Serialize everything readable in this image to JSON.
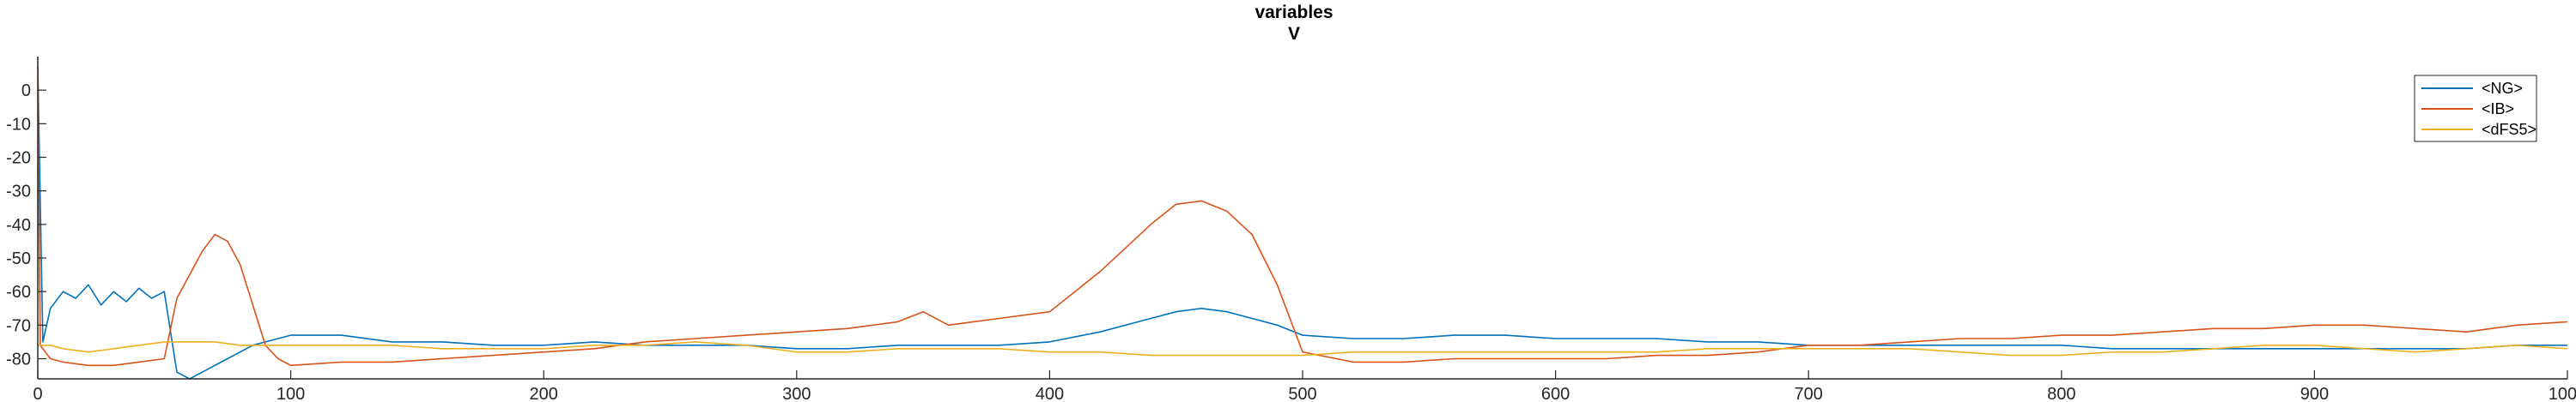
{
  "chart_data": {
    "type": "line",
    "title": "variables",
    "subtitle": "V",
    "xlim": [
      0,
      1000
    ],
    "ylim": [
      -86,
      10
    ],
    "x_ticks": [
      0,
      100,
      200,
      300,
      400,
      500,
      600,
      700,
      800,
      900,
      1000
    ],
    "y_ticks": [
      0,
      -10,
      -20,
      -30,
      -40,
      -50,
      -60,
      -70,
      -80
    ],
    "grid": false,
    "legend_position": "top-right",
    "series": [
      {
        "name": "<NG>",
        "color": "#0072BD",
        "x": [
          0,
          2,
          5,
          10,
          15,
          20,
          25,
          30,
          35,
          40,
          45,
          50,
          55,
          60,
          65,
          70,
          75,
          80,
          85,
          90,
          95,
          100,
          120,
          140,
          160,
          180,
          200,
          220,
          240,
          260,
          280,
          300,
          320,
          340,
          360,
          380,
          400,
          420,
          440,
          450,
          460,
          470,
          480,
          490,
          500,
          520,
          540,
          560,
          580,
          600,
          620,
          640,
          660,
          680,
          700,
          720,
          740,
          760,
          780,
          800,
          820,
          840,
          860,
          880,
          900,
          920,
          940,
          960,
          980,
          1000
        ],
        "y": [
          7,
          -75,
          -65,
          -60,
          -62,
          -58,
          -64,
          -60,
          -63,
          -59,
          -62,
          -60,
          -84,
          -86,
          -84,
          -82,
          -80,
          -78,
          -76,
          -75,
          -74,
          -73,
          -73,
          -75,
          -75,
          -76,
          -76,
          -75,
          -76,
          -76,
          -76,
          -77,
          -77,
          -76,
          -76,
          -76,
          -75,
          -72,
          -68,
          -66,
          -65,
          -66,
          -68,
          -70,
          -73,
          -74,
          -74,
          -73,
          -73,
          -74,
          -74,
          -74,
          -75,
          -75,
          -76,
          -76,
          -76,
          -76,
          -76,
          -76,
          -77,
          -77,
          -77,
          -77,
          -77,
          -77,
          -77,
          -77,
          -76,
          -76
        ]
      },
      {
        "name": "<IB>",
        "color": "#D95319",
        "x": [
          0,
          1,
          5,
          10,
          20,
          30,
          40,
          50,
          55,
          60,
          65,
          70,
          75,
          80,
          85,
          90,
          95,
          100,
          120,
          140,
          160,
          180,
          200,
          220,
          240,
          260,
          280,
          300,
          320,
          340,
          350,
          360,
          380,
          400,
          410,
          420,
          430,
          440,
          450,
          460,
          470,
          480,
          490,
          500,
          520,
          540,
          560,
          580,
          600,
          620,
          640,
          660,
          680,
          700,
          720,
          740,
          760,
          780,
          800,
          820,
          840,
          860,
          880,
          900,
          920,
          940,
          960,
          980,
          1000
        ],
        "y": [
          7,
          -76,
          -80,
          -81,
          -82,
          -82,
          -81,
          -80,
          -62,
          -55,
          -48,
          -43,
          -45,
          -52,
          -64,
          -76,
          -80,
          -82,
          -81,
          -81,
          -80,
          -79,
          -78,
          -77,
          -75,
          -74,
          -73,
          -72,
          -71,
          -69,
          -66,
          -70,
          -68,
          -66,
          -60,
          -54,
          -47,
          -40,
          -34,
          -33,
          -36,
          -43,
          -58,
          -78,
          -81,
          -81,
          -80,
          -80,
          -80,
          -80,
          -79,
          -79,
          -78,
          -76,
          -76,
          -75,
          -74,
          -74,
          -73,
          -73,
          -72,
          -71,
          -71,
          -70,
          -70,
          -71,
          -72,
          -70,
          -69
        ]
      },
      {
        "name": "<dFS5>",
        "color": "#EDB120",
        "x": [
          0,
          5,
          10,
          20,
          30,
          40,
          50,
          60,
          70,
          80,
          90,
          100,
          120,
          140,
          160,
          180,
          200,
          220,
          240,
          260,
          280,
          300,
          320,
          340,
          360,
          380,
          400,
          420,
          440,
          460,
          480,
          500,
          520,
          540,
          560,
          580,
          600,
          620,
          640,
          660,
          680,
          700,
          720,
          740,
          760,
          780,
          800,
          820,
          840,
          860,
          880,
          900,
          920,
          940,
          960,
          980,
          1000
        ],
        "y": [
          -76,
          -76,
          -77,
          -78,
          -77,
          -76,
          -75,
          -75,
          -75,
          -76,
          -76,
          -76,
          -76,
          -76,
          -77,
          -77,
          -77,
          -76,
          -76,
          -75,
          -76,
          -78,
          -78,
          -77,
          -77,
          -77,
          -78,
          -78,
          -79,
          -79,
          -79,
          -79,
          -78,
          -78,
          -78,
          -78,
          -78,
          -78,
          -78,
          -77,
          -77,
          -77,
          -77,
          -77,
          -78,
          -79,
          -79,
          -78,
          -78,
          -77,
          -76,
          -76,
          -77,
          -78,
          -77,
          -76,
          -77
        ]
      }
    ]
  }
}
